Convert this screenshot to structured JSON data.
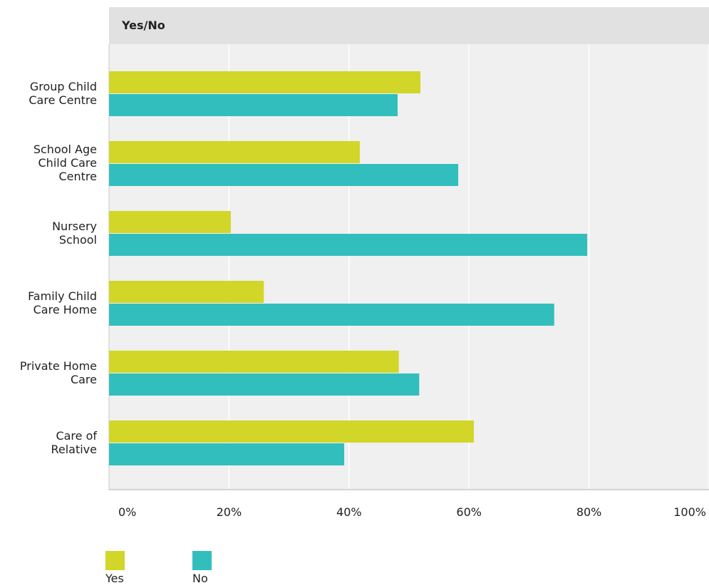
{
  "chart_data": {
    "type": "bar",
    "orientation": "horizontal",
    "title": "Yes/No",
    "categories": [
      "Group Child Care Centre",
      "School Age Child Care Centre",
      "Nursery School",
      "Family Child Care Home",
      "Private Home Care",
      "Care of Relative"
    ],
    "category_lines": [
      [
        "Group Child",
        "Care Centre"
      ],
      [
        "School Age",
        "Child Care",
        "Centre"
      ],
      [
        "Nursery",
        "School"
      ],
      [
        "Family Child",
        "Care Home"
      ],
      [
        "Private Home",
        "Care"
      ],
      [
        "Care of",
        "Relative"
      ]
    ],
    "series": [
      {
        "name": "Yes",
        "color": "#d1d628",
        "values": [
          51.9,
          41.8,
          20.3,
          25.8,
          48.3,
          60.8
        ]
      },
      {
        "name": "No",
        "color": "#33bebe",
        "values": [
          48.1,
          58.2,
          79.7,
          74.2,
          51.7,
          39.2
        ]
      }
    ],
    "xlim": [
      0,
      100
    ],
    "x_ticks": [
      0,
      20,
      40,
      60,
      80,
      100
    ],
    "x_tick_labels": [
      "0%",
      "20%",
      "40%",
      "60%",
      "80%",
      "100%"
    ],
    "grid": true,
    "legend_position": "bottom-left",
    "background_color": "#f0f0f0",
    "header_color": "#e1e1e1"
  }
}
